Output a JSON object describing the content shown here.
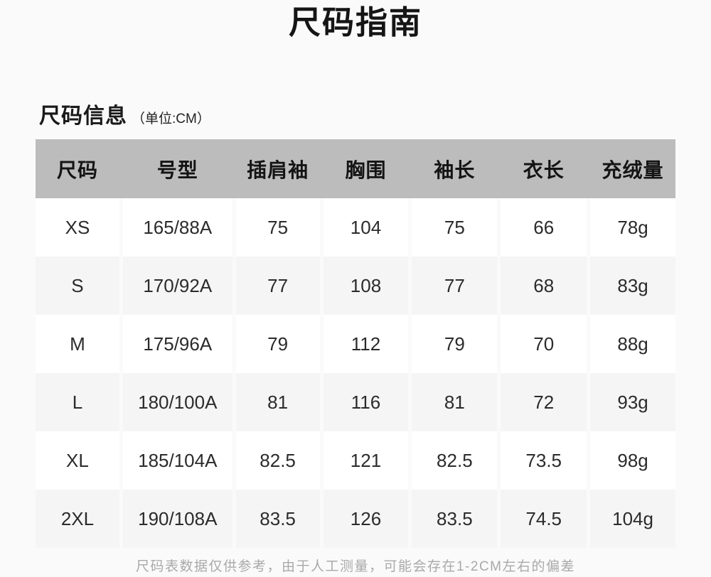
{
  "page": {
    "title": "尺码指南",
    "section": {
      "heading": "尺码信息",
      "unit_note": "（单位:CM）"
    },
    "footer_note": "尺码表数据仅供参考，由于人工测量，可能会存在1-2CM左右的偏差"
  },
  "size_table": {
    "headers": [
      "尺码",
      "号型",
      "插肩袖",
      "胸围",
      "袖长",
      "衣长",
      "充绒量"
    ],
    "rows": [
      [
        "XS",
        "165/88A",
        "75",
        "104",
        "75",
        "66",
        "78g"
      ],
      [
        "S",
        "170/92A",
        "77",
        "108",
        "77",
        "68",
        "83g"
      ],
      [
        "M",
        "175/96A",
        "79",
        "112",
        "79",
        "70",
        "88g"
      ],
      [
        "L",
        "180/100A",
        "81",
        "116",
        "81",
        "72",
        "93g"
      ],
      [
        "XL",
        "185/104A",
        "82.5",
        "121",
        "82.5",
        "73.5",
        "98g"
      ],
      [
        "2XL",
        "190/108A",
        "83.5",
        "126",
        "83.5",
        "74.5",
        "104g"
      ]
    ]
  },
  "chart_data": {
    "type": "table",
    "title": "尺码信息 (单位:CM)",
    "columns": [
      "尺码",
      "号型",
      "插肩袖",
      "胸围",
      "袖长",
      "衣长",
      "充绒量"
    ],
    "rows": [
      [
        "XS",
        "165/88A",
        75,
        104,
        75,
        66,
        "78g"
      ],
      [
        "S",
        "170/92A",
        77,
        108,
        77,
        68,
        "83g"
      ],
      [
        "M",
        "175/96A",
        79,
        112,
        79,
        70,
        "88g"
      ],
      [
        "L",
        "180/100A",
        81,
        116,
        81,
        72,
        "93g"
      ],
      [
        "XL",
        "185/104A",
        82.5,
        121,
        82.5,
        73.5,
        "98g"
      ],
      [
        "2XL",
        "190/108A",
        83.5,
        126,
        83.5,
        74.5,
        "104g"
      ]
    ]
  },
  "colors": {
    "page_bg": "#fafafa",
    "header_row_bg": "#bcbcbc",
    "row_alt_bg": "#f5f5f5",
    "row_plain_bg": "#ffffff",
    "body_text": "#2b2b2b",
    "footer_text": "#a9a9a9"
  }
}
